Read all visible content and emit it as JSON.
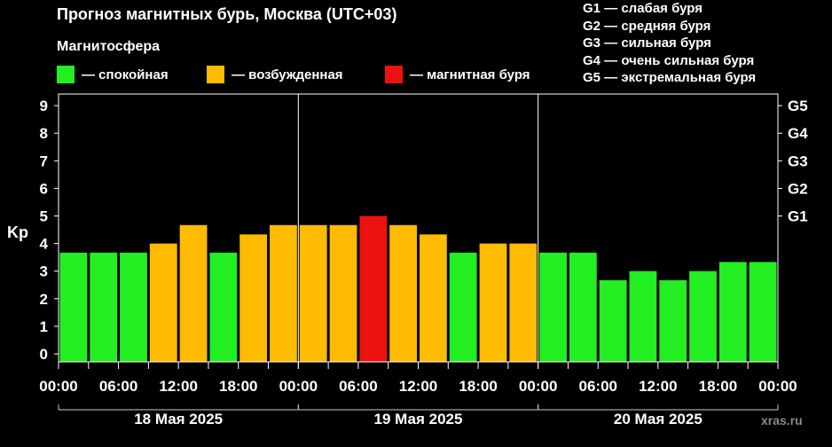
{
  "header": {
    "title": "Прогноз магнитных бурь, Москва (UTC+03)",
    "subtitle": "Магнитосфера"
  },
  "legend": [
    {
      "label": "— спокойная",
      "color": "#22ee22"
    },
    {
      "label": "— возбужденная",
      "color": "#ffbb00"
    },
    {
      "label": "— магнитная буря",
      "color": "#ee1111"
    }
  ],
  "storm_scale": [
    "G1 — слабая буря",
    "G2 — средняя буря",
    "G3 — сильная буря",
    "G4 — очень сильная буря",
    "G5 — экстремальная буря"
  ],
  "watermark": "xras.ru",
  "chart_data": {
    "type": "bar",
    "ylabel": "Kp",
    "ylim": [
      0,
      9
    ],
    "yticks": [
      "0",
      "1",
      "2",
      "3",
      "4",
      "5",
      "6",
      "7",
      "8",
      "9"
    ],
    "right_ticks": [
      {
        "label": "G1",
        "kp": 5
      },
      {
        "label": "G2",
        "kp": 6
      },
      {
        "label": "G3",
        "kp": 7
      },
      {
        "label": "G4",
        "kp": 8
      },
      {
        "label": "G5",
        "kp": 9
      }
    ],
    "xticks": [
      "00:00",
      "06:00",
      "12:00",
      "18:00",
      "00:00",
      "06:00",
      "12:00",
      "18:00",
      "00:00",
      "06:00",
      "12:00",
      "18:00",
      "00:00"
    ],
    "days": [
      "18 Мая 2025",
      "19 Мая 2025",
      "20 Мая 2025"
    ],
    "interval_hours": 3,
    "values": [
      3.67,
      3.67,
      3.67,
      4.0,
      4.67,
      3.67,
      4.33,
      4.67,
      4.67,
      4.67,
      5.0,
      4.67,
      4.33,
      3.67,
      4.0,
      4.0,
      3.67,
      3.67,
      2.67,
      3.0,
      2.67,
      3.0,
      3.33,
      3.33
    ],
    "status": [
      "quiet",
      "quiet",
      "quiet",
      "active",
      "active",
      "quiet",
      "active",
      "active",
      "active",
      "active",
      "storm",
      "active",
      "active",
      "quiet",
      "active",
      "active",
      "quiet",
      "quiet",
      "quiet",
      "quiet",
      "quiet",
      "quiet",
      "quiet",
      "quiet"
    ],
    "colors": {
      "quiet": "#22ee22",
      "active": "#ffbb00",
      "storm": "#ee1111"
    },
    "grid": false
  }
}
